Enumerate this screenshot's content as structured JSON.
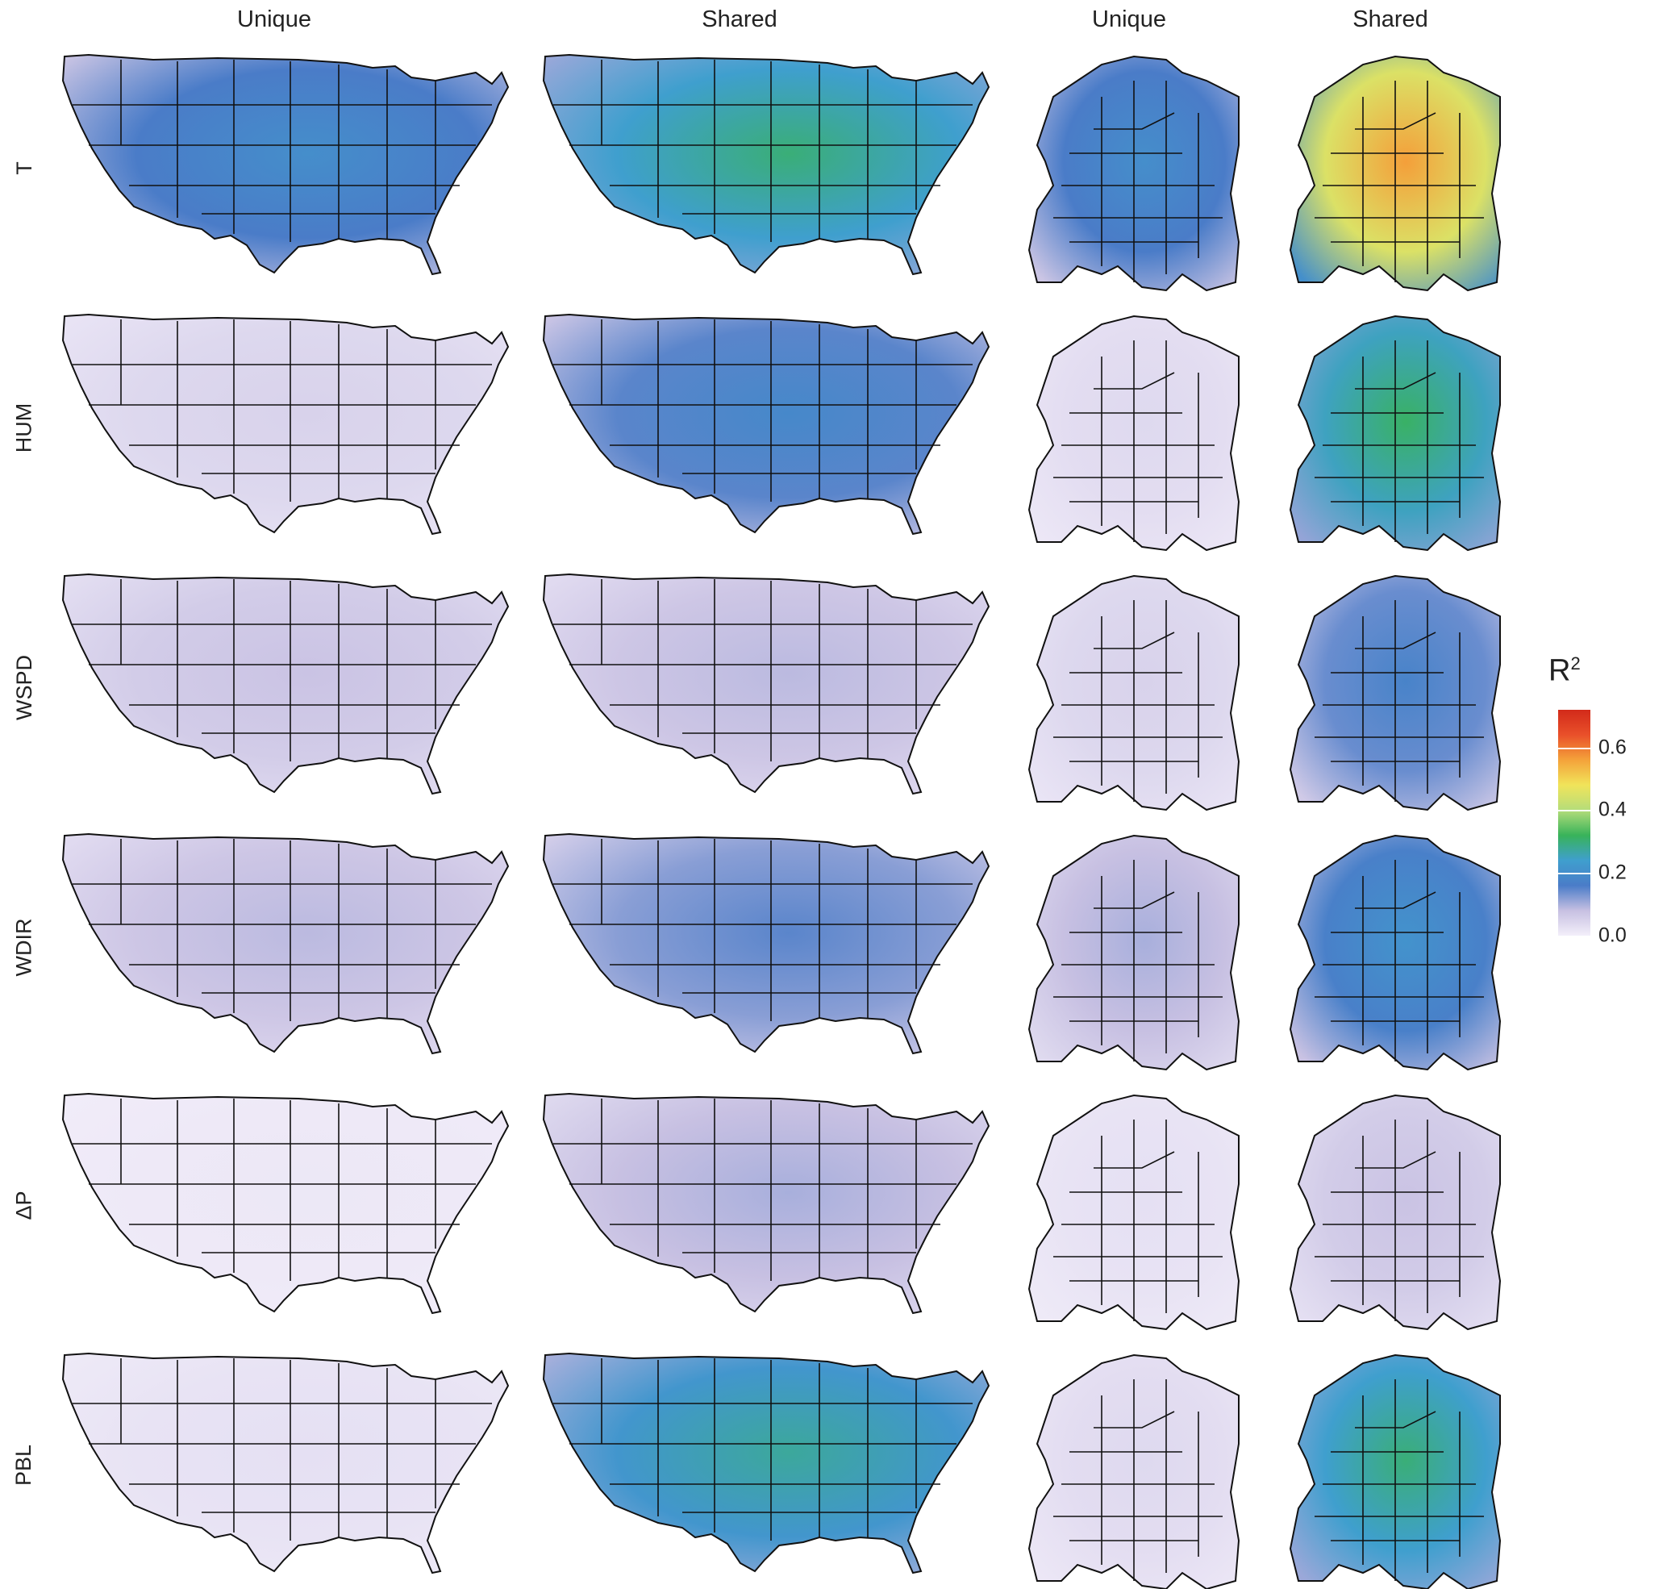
{
  "column_headers": [
    {
      "label": "Unique",
      "region": "us"
    },
    {
      "label": "Shared",
      "region": "us"
    },
    {
      "label": "Unique",
      "region": "europe"
    },
    {
      "label": "Shared",
      "region": "europe"
    }
  ],
  "row_labels": [
    "T",
    "HUM",
    "WSPD",
    "WDIR",
    "ΔP",
    "PBL"
  ],
  "legend": {
    "title": "R",
    "title_superscript": "2",
    "ticks": [
      "0.0",
      "0.2",
      "0.4",
      "0.6"
    ],
    "tick_values": [
      0.0,
      0.2,
      0.4,
      0.6
    ],
    "max_value": 0.72,
    "colors": [
      "#f3effa",
      "#c7c0e2",
      "#4a7cc8",
      "#3f9fce",
      "#38b35a",
      "#b5dd7a",
      "#f1e45a",
      "#f4a23a",
      "#e9502a",
      "#d22a1a"
    ]
  },
  "panels_r2_level": {
    "T": {
      "us_unique": 0.16,
      "us_shared": 0.24,
      "europe_unique": 0.16,
      "europe_shared": 0.45
    },
    "HUM": {
      "us_unique": 0.04,
      "us_shared": 0.15,
      "europe_unique": 0.03,
      "europe_shared": 0.25
    },
    "WSPD": {
      "us_unique": 0.06,
      "us_shared": 0.07,
      "europe_unique": 0.04,
      "europe_shared": 0.14
    },
    "WDIR": {
      "us_unique": 0.07,
      "us_shared": 0.12,
      "europe_unique": 0.08,
      "europe_shared": 0.17
    },
    "ΔP": {
      "us_unique": 0.01,
      "us_shared": 0.08,
      "europe_unique": 0.02,
      "europe_shared": 0.06
    },
    "PBL": {
      "us_unique": 0.02,
      "us_shared": 0.22,
      "europe_unique": 0.03,
      "europe_shared": 0.24
    }
  }
}
